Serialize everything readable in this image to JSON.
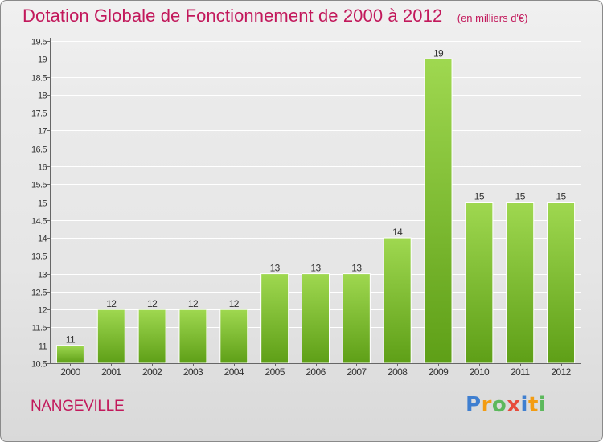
{
  "chart_data": {
    "type": "bar",
    "title": "Dotation Globale de Fonctionnement de 2000 à 2012",
    "subtitle": "(en milliers d'€)",
    "categories": [
      "2000",
      "2001",
      "2002",
      "2003",
      "2004",
      "2005",
      "2006",
      "2007",
      "2008",
      "2009",
      "2010",
      "2011",
      "2012"
    ],
    "values": [
      11,
      12,
      12,
      12,
      12,
      13,
      13,
      13,
      14,
      19,
      15,
      15,
      15
    ],
    "data_labels": [
      "11",
      "12",
      "12",
      "12",
      "12",
      "13",
      "13",
      "13",
      "14",
      "19",
      "15",
      "15",
      "15"
    ],
    "ylim": [
      10.5,
      19.5
    ],
    "yticks": [
      10.5,
      11,
      11.5,
      12,
      12.5,
      13,
      13.5,
      14,
      14.5,
      15,
      15.5,
      16,
      16.5,
      17,
      17.5,
      18,
      18.5,
      19,
      19.5
    ],
    "ytick_labels": [
      "10.5",
      "11",
      "11.5",
      "12",
      "12.5",
      "13",
      "13.5",
      "14",
      "14.5",
      "15",
      "15.5",
      "16",
      "16.5",
      "17",
      "17.5",
      "18",
      "18.5",
      "19",
      "19.5"
    ],
    "grid": true,
    "xlabel": "",
    "ylabel": ""
  },
  "location": "NANGEVILLE",
  "brand": {
    "letters": [
      "P",
      "r",
      "o",
      "x",
      "i",
      "t",
      "i"
    ],
    "colors": [
      "#3f7fd0",
      "#f39c12",
      "#5cb85c",
      "#e74c3c",
      "#3f7fd0",
      "#f39c12",
      "#5cb85c"
    ]
  },
  "colors": {
    "bar_top": "#9fd850",
    "bar_bottom": "#5e9f17",
    "accent": "#c2185b",
    "grid": "#ffffff",
    "axis": "#666666"
  }
}
